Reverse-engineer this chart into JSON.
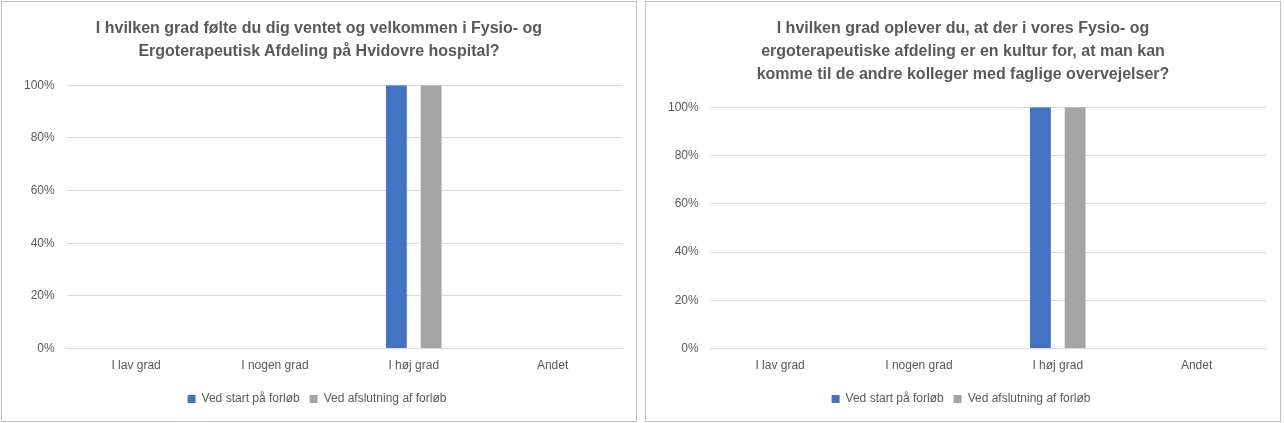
{
  "chart_data": [
    {
      "type": "bar",
      "title": "I hvilken grad følte du dig ventet og velkommen i Fysio- og Ergoterapeutisk Afdeling på Hvidovre hospital?",
      "categories": [
        "I lav grad",
        "I nogen grad",
        "I høj grad",
        "Andet"
      ],
      "series": [
        {
          "name": "Ved start på forløb",
          "color": "#4472c4",
          "values": [
            0,
            0,
            100,
            0
          ]
        },
        {
          "name": "Ved afslutning af forløb",
          "color": "#a5a5a5",
          "values": [
            0,
            0,
            100,
            0
          ]
        }
      ],
      "ylim": [
        0,
        100
      ],
      "yticks": [
        {
          "value": 0,
          "label": "0%"
        },
        {
          "value": 20,
          "label": "20%"
        },
        {
          "value": 40,
          "label": "40%"
        },
        {
          "value": 60,
          "label": "60%"
        },
        {
          "value": 80,
          "label": "80%"
        },
        {
          "value": 100,
          "label": "100%"
        }
      ],
      "grid": "y",
      "legend": "bottom"
    },
    {
      "type": "bar",
      "title": "I hvilken grad oplever du, at der i vores Fysio- og ergoterapeutiske afdeling er en kultur for, at man kan komme til de andre kolleger med faglige overvejelser?",
      "categories": [
        "I lav grad",
        "I nogen grad",
        "I høj grad",
        "Andet"
      ],
      "series": [
        {
          "name": "Ved start på forløb",
          "color": "#4472c4",
          "values": [
            0,
            0,
            100,
            0
          ]
        },
        {
          "name": "Ved afslutning af forløb",
          "color": "#a5a5a5",
          "values": [
            0,
            0,
            100,
            0
          ]
        }
      ],
      "ylim": [
        0,
        100
      ],
      "yticks": [
        {
          "value": 0,
          "label": "0%"
        },
        {
          "value": 20,
          "label": "20%"
        },
        {
          "value": 40,
          "label": "40%"
        },
        {
          "value": 60,
          "label": "60%"
        },
        {
          "value": 80,
          "label": "80%"
        },
        {
          "value": 100,
          "label": "100%"
        }
      ],
      "grid": "y",
      "legend": "bottom"
    }
  ]
}
